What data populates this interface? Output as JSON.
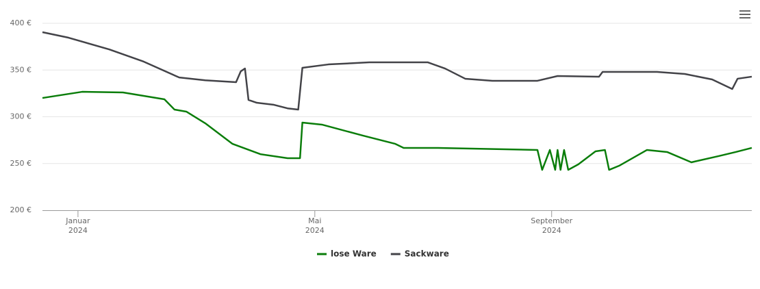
{
  "chart_data": {
    "type": "line",
    "x": null,
    "series": [
      {
        "name": "lose Ware",
        "color": "#0a7d0a",
        "x": [
          -0.6,
          0.07,
          0.76,
          1.46,
          1.63,
          1.83,
          2.15,
          2.61,
          3.08,
          3.54,
          3.75,
          3.79,
          4.12,
          4.81,
          5.36,
          5.5,
          6.08,
          7.76,
          7.84,
          7.97,
          8.06,
          8.1,
          8.15,
          8.21,
          8.28,
          8.45,
          8.74,
          8.9,
          8.97,
          9.14,
          9.61,
          9.95,
          10.36,
          10.82,
          11.11,
          11.38
        ],
        "values": [
          320.1,
          326.7,
          326,
          318.7,
          307.7,
          305.5,
          293,
          271,
          260,
          255.7,
          255.7,
          293.8,
          291.6,
          279.9,
          271,
          266.7,
          266.7,
          264.5,
          243.2,
          264.5,
          243.2,
          264.5,
          243.2,
          264.5,
          243.2,
          249.1,
          263,
          264.5,
          243.2,
          247.6,
          264.5,
          262.3,
          251.3,
          257.9,
          262.3,
          266.7
        ]
      },
      {
        "name": "Sackware",
        "color": "#434348",
        "x": [
          -0.6,
          -0.16,
          0.53,
          1.11,
          1.71,
          2.15,
          2.67,
          2.75,
          2.82,
          2.88,
          3.02,
          3.31,
          3.54,
          3.72,
          3.79,
          4.23,
          4.92,
          5.91,
          6.2,
          6.54,
          7.0,
          7.76,
          8.1,
          8.8,
          8.86,
          9.78,
          10.25,
          10.71,
          11.05,
          11.14,
          11.38
        ],
        "values": [
          390.5,
          384.6,
          372,
          359,
          342,
          339,
          337,
          348.7,
          351.6,
          318,
          315,
          312.8,
          309,
          307.7,
          352.4,
          356,
          358.2,
          358.2,
          351.6,
          340.7,
          338.5,
          338.5,
          343.6,
          342.9,
          348,
          348,
          345.8,
          339.9,
          329.7,
          340.7,
          342.9
        ]
      }
    ],
    "xlim": [
      -0.6,
      11.38
    ],
    "xticks": [
      {
        "value": 0,
        "label": [
          "Januar",
          "2024"
        ]
      },
      {
        "value": 4,
        "label": [
          "Mai",
          "2024"
        ]
      },
      {
        "value": 8,
        "label": [
          "September",
          "2024"
        ]
      }
    ],
    "ylim": [
      200,
      400
    ],
    "yticks": [
      {
        "value": 200,
        "label": "200 €"
      },
      {
        "value": 250,
        "label": "250 €"
      },
      {
        "value": 300,
        "label": "300 €"
      },
      {
        "value": 350,
        "label": "350 €"
      },
      {
        "value": 400,
        "label": "400 €"
      }
    ],
    "grid": true
  }
}
